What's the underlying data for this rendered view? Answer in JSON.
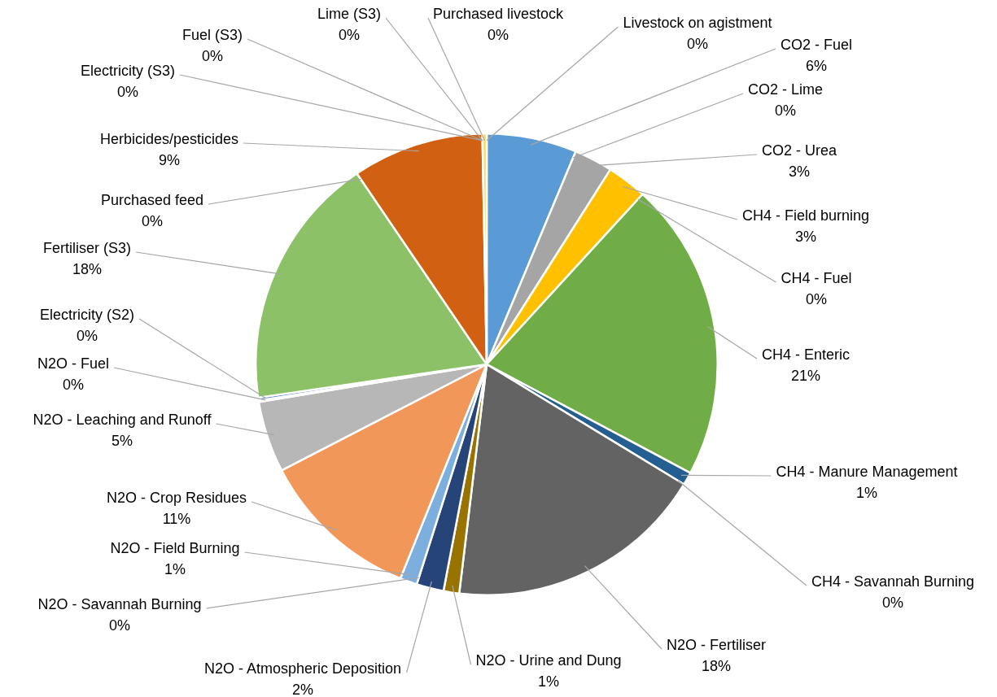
{
  "chart_data": {
    "type": "pie",
    "categories": [
      "CO2 - Fuel",
      "CO2 - Lime",
      "CO2 - Urea",
      "CH4 - Field burning",
      "CH4 - Fuel",
      "CH4 - Enteric",
      "CH4 - Manure Management",
      "CH4 - Savannah Burning",
      "N2O - Fertiliser",
      "N2O - Urine and Dung",
      "N2O - Atmospheric Deposition",
      "N2O - Savannah Burning",
      "N2O - Field Burning",
      "N2O - Crop Residues",
      "N2O - Leaching and Runoff",
      "N2O - Fuel",
      "Electricity (S2)",
      "Fertiliser (S3)",
      "Purchased feed",
      "Herbicides/pesticides",
      "Electricity (S3)",
      "Fuel (S3)",
      "Lime (S3)",
      "Purchased livestock",
      "Livestock on agistment"
    ],
    "values": [
      6.3,
      0,
      2.7,
      2.8,
      0,
      21.0,
      0.9,
      0,
      18.2,
      1.1,
      1.9,
      0,
      1.2,
      11.3,
      5.0,
      0.1,
      0.2,
      17.8,
      0,
      9.2,
      0,
      0,
      0,
      0.3,
      0
    ],
    "value_labels": [
      "6%",
      "0%",
      "3%",
      "3%",
      "0%",
      "21%",
      "1%",
      "0%",
      "18%",
      "1%",
      "2%",
      "0%",
      "1%",
      "11%",
      "5%",
      "0%",
      "0%",
      "18%",
      "0%",
      "9%",
      "0%",
      "0%",
      "0%",
      "0%",
      "0%"
    ],
    "colors": [
      "#5b9bd5",
      "#ed7d31",
      "#a5a5a5",
      "#ffc000",
      "#4472c4",
      "#70ad47",
      "#255e91",
      "#9e480e",
      "#636363",
      "#997300",
      "#264478",
      "#43682b",
      "#7cafdd",
      "#f1975a",
      "#b7b7b7",
      "#ffcd33",
      "#698ed0",
      "#8cc168",
      "#327dc2",
      "#d26012",
      "#a5a5a5",
      "#ffc000",
      "#4472c4",
      "#ffd966",
      "#70ad47"
    ]
  }
}
